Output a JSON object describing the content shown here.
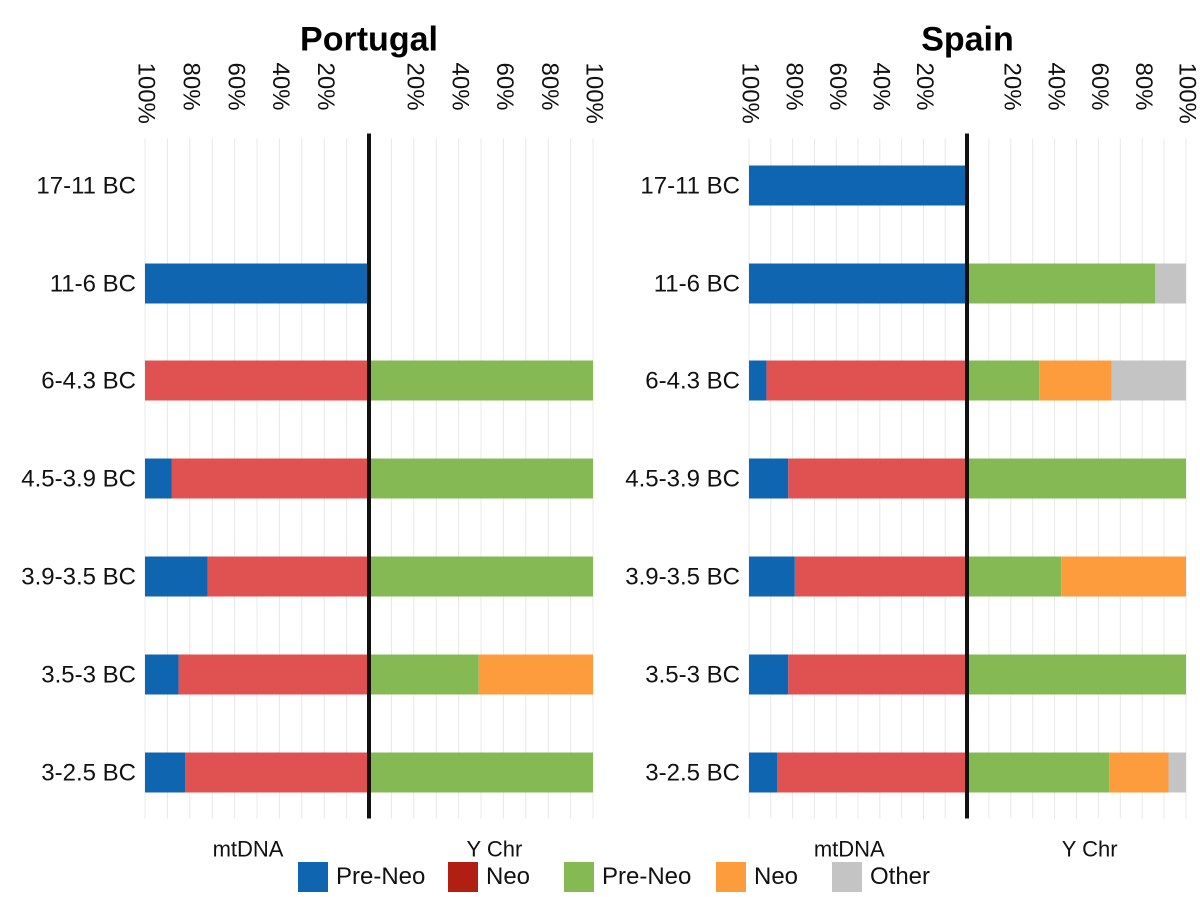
{
  "chart_data": [
    {
      "type": "bar",
      "title": "Portugal",
      "categories": [
        "17-11 BC",
        "11-6 BC",
        "6-4.3 BC",
        "4.5-3.9 BC",
        "3.9-3.5 BC",
        "3.5-3 BC",
        "3-2.5 BC"
      ],
      "left_axis": {
        "label": "mtDNA",
        "ticks": [
          "100%",
          "80%",
          "60%",
          "40%",
          "20%"
        ],
        "range": [
          0,
          100
        ],
        "series": [
          {
            "name": "Pre-Neo",
            "color": "#1065b0",
            "values": [
              0,
              100,
              0,
              12,
              28,
              15,
              18
            ]
          },
          {
            "name": "Neo",
            "color": "#e05252",
            "values": [
              0,
              0,
              100,
              88,
              72,
              85,
              82
            ]
          }
        ]
      },
      "right_axis": {
        "label": "Y Chr",
        "ticks": [
          "20%",
          "40%",
          "60%",
          "80%",
          "100%"
        ],
        "range": [
          0,
          100
        ],
        "series": [
          {
            "name": "Pre-Neo",
            "color": "#85b954",
            "values": [
              0,
              0,
              100,
              100,
              100,
              49,
              100
            ]
          },
          {
            "name": "Neo",
            "color": "#fc9c3c",
            "values": [
              0,
              0,
              0,
              0,
              0,
              51,
              0
            ]
          },
          {
            "name": "Other",
            "color": "#c4c4c4",
            "values": [
              0,
              0,
              0,
              0,
              0,
              0,
              0
            ]
          }
        ]
      },
      "grid": true
    },
    {
      "type": "bar",
      "title": "Spain",
      "categories": [
        "17-11 BC",
        "11-6 BC",
        "6-4.3 BC",
        "4.5-3.9 BC",
        "3.9-3.5 BC",
        "3.5-3 BC",
        "3-2.5 BC"
      ],
      "left_axis": {
        "label": "mtDNA",
        "ticks": [
          "100%",
          "80%",
          "60%",
          "40%",
          "20%"
        ],
        "range": [
          0,
          100
        ],
        "series": [
          {
            "name": "Pre-Neo",
            "color": "#1065b0",
            "values": [
              100,
              100,
              8,
              18,
              21,
              18,
              13
            ]
          },
          {
            "name": "Neo",
            "color": "#e05252",
            "values": [
              0,
              0,
              92,
              82,
              79,
              82,
              87
            ]
          }
        ]
      },
      "right_axis": {
        "label": "Y Chr",
        "ticks": [
          "20%",
          "40%",
          "60%",
          "80%",
          "100%"
        ],
        "range": [
          0,
          100
        ],
        "series": [
          {
            "name": "Pre-Neo",
            "color": "#85b954",
            "values": [
              0,
              86,
              33,
              100,
              43,
              100,
              65
            ]
          },
          {
            "name": "Neo",
            "color": "#fc9c3c",
            "values": [
              0,
              0,
              33,
              0,
              57,
              0,
              27
            ]
          },
          {
            "name": "Other",
            "color": "#c4c4c4",
            "values": [
              0,
              14,
              34,
              0,
              0,
              0,
              8
            ]
          }
        ]
      },
      "grid": true
    }
  ],
  "legend": [
    {
      "label": "Pre-Neo",
      "color": "#1065b0"
    },
    {
      "label": "Neo",
      "color": "#b01f12"
    },
    {
      "label": "Pre-Neo",
      "color": "#85b954"
    },
    {
      "label": "Neo",
      "color": "#fc9c3c"
    },
    {
      "label": "Other",
      "color": "#c4c4c4"
    }
  ]
}
